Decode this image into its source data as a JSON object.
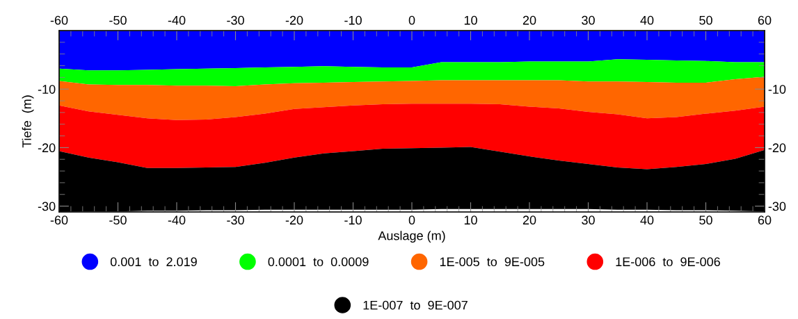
{
  "chart_data": {
    "type": "area",
    "stacked": true,
    "xlabel": "Auslage (m)",
    "ylabel": "Tiefe  (m)",
    "x": [
      -60,
      -55,
      -50,
      -45,
      -40,
      -35,
      -30,
      -25,
      -20,
      -15,
      -10,
      -5,
      0,
      5,
      10,
      15,
      20,
      25,
      30,
      35,
      40,
      45,
      50,
      55,
      60
    ],
    "series": [
      {
        "name": "0.001  to  2.019",
        "color": "#0000ff",
        "values": [
          -6.5,
          -6.8,
          -6.8,
          -6.7,
          -6.6,
          -6.5,
          -6.4,
          -6.3,
          -6.2,
          -6.1,
          -6.2,
          -6.3,
          -6.3,
          -5.4,
          -5.4,
          -5.4,
          -5.3,
          -5.3,
          -5.3,
          -4.9,
          -5.0,
          -5.1,
          -5.2,
          -5.4,
          -5.4
        ]
      },
      {
        "name": "0.0001  to  0.0009",
        "color": "#00ff00",
        "values": [
          -2.1,
          -2.4,
          -2.5,
          -2.6,
          -2.8,
          -2.9,
          -3.1,
          -2.9,
          -2.8,
          -2.8,
          -2.6,
          -2.4,
          -2.3,
          -3.1,
          -3.1,
          -3.1,
          -3.2,
          -3.2,
          -3.4,
          -3.8,
          -3.8,
          -3.8,
          -3.7,
          -2.9,
          -2.5
        ]
      },
      {
        "name": "1E-005  to  9E-005",
        "color": "#ff6600",
        "values": [
          -4.2,
          -4.6,
          -5.1,
          -5.7,
          -5.9,
          -5.8,
          -5.3,
          -5.0,
          -4.4,
          -4.2,
          -4.0,
          -3.9,
          -3.9,
          -4.0,
          -4.0,
          -4.1,
          -4.5,
          -4.8,
          -5.2,
          -5.6,
          -6.2,
          -5.9,
          -5.3,
          -5.4,
          -5.1
        ]
      },
      {
        "name": "1E-006  to  9E-006",
        "color": "#ff0000",
        "values": [
          -7.8,
          -7.9,
          -8.1,
          -8.5,
          -8.2,
          -8.2,
          -8.5,
          -8.4,
          -8.3,
          -7.9,
          -7.8,
          -7.6,
          -7.6,
          -7.5,
          -7.4,
          -8.1,
          -8.5,
          -8.9,
          -8.9,
          -9.1,
          -8.7,
          -8.5,
          -8.6,
          -8.2,
          -7.4
        ]
      },
      {
        "name": "1E-007  to  9E-007",
        "color": "#000000",
        "values": [
          -10.4,
          -9.2,
          -8.4,
          -7.3,
          -7.3,
          -7.3,
          -7.4,
          -8.0,
          -8.9,
          -9.6,
          -10.0,
          -10.4,
          -10.5,
          -10.5,
          -10.6,
          -9.8,
          -9.0,
          -8.3,
          -7.7,
          -7.2,
          -6.9,
          -7.4,
          -7.9,
          -8.9,
          -10.5
        ]
      }
    ],
    "xlim": [
      -60,
      60
    ],
    "xticks": [
      -60,
      -50,
      -40,
      -30,
      -20,
      -10,
      0,
      10,
      20,
      30,
      40,
      50,
      60
    ],
    "x2lim": [
      -60,
      60
    ],
    "x2ticks": [
      -60,
      -50,
      -40,
      -30,
      -20,
      -10,
      0,
      10,
      20,
      30,
      40,
      50,
      60
    ],
    "ylim": [
      -31,
      0
    ],
    "yticks": [
      -10,
      -20,
      -30
    ],
    "y2lim": [
      -31,
      0
    ],
    "y2ticks": [
      -10,
      -20,
      -30
    ],
    "grid": false,
    "legend": "bottom"
  }
}
